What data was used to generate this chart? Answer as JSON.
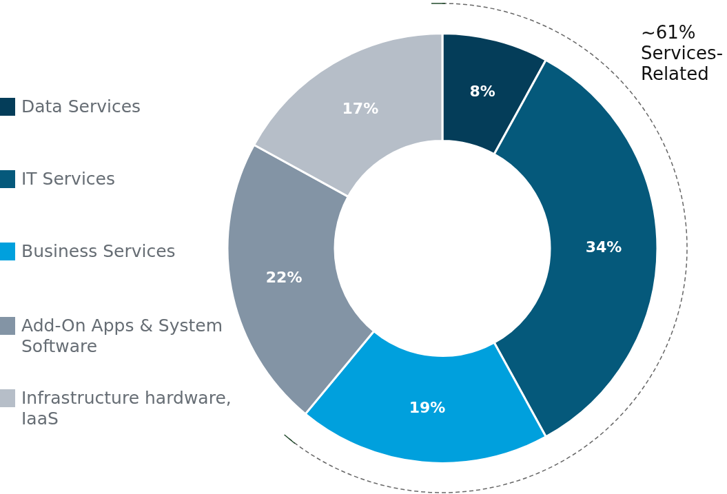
{
  "chart_data": {
    "type": "donut",
    "categories": [
      "Data Services",
      "IT Services",
      "Business Services",
      "Add-On Apps & System Software",
      "Infrastructure hardware, IaaS"
    ],
    "values": [
      8,
      34,
      19,
      22,
      17
    ],
    "colors": [
      "#043d59",
      "#05597b",
      "#00a0dd",
      "#8394a5",
      "#b6bec8"
    ],
    "value_labels": [
      "8%",
      "34%",
      "19%",
      "22%",
      "17%"
    ],
    "legend": "left",
    "annotations": [
      "~61% Services-Related"
    ]
  }
}
